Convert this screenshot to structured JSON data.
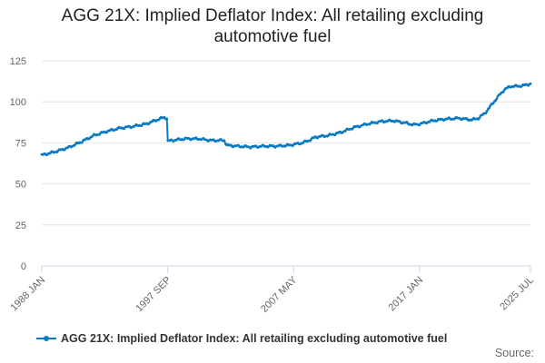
{
  "chart_data": {
    "type": "line",
    "title_line1": "AGG 21X: Implied Deflator Index: All retailing excluding",
    "title_line2": "automotive fuel",
    "xlabel": "",
    "ylabel": "",
    "ylim": [
      0,
      125
    ],
    "yticks": [
      "0",
      "25",
      "50",
      "75",
      "100",
      "125"
    ],
    "xticks": [
      {
        "label": "1988 JAN",
        "t": 1988.0
      },
      {
        "label": "1997 SEP",
        "t": 1997.67
      },
      {
        "label": "2007 MAY",
        "t": 2007.33
      },
      {
        "label": "2017 JAN",
        "t": 2017.0
      },
      {
        "label": "2025 JUL",
        "t": 2025.5
      }
    ],
    "x_range": [
      1988.0,
      2025.5
    ],
    "grid": true,
    "legend_position": "bottom",
    "color": "#0a7bc2",
    "series": [
      {
        "name": "AGG 21X: Implied Deflator Index: All retailing excluding automotive fuel",
        "points": [
          [
            1988.0,
            67.5
          ],
          [
            1989.0,
            69.5
          ],
          [
            1990.0,
            72.0
          ],
          [
            1991.0,
            75.5
          ],
          [
            1992.0,
            79.5
          ],
          [
            1993.0,
            82.0
          ],
          [
            1994.0,
            84.0
          ],
          [
            1995.0,
            85.0
          ],
          [
            1996.0,
            86.5
          ],
          [
            1996.5,
            88.0
          ],
          [
            1997.0,
            89.5
          ],
          [
            1997.4,
            90.5
          ],
          [
            1997.6,
            90.0
          ],
          [
            1997.67,
            76.0
          ],
          [
            1998.0,
            76.5
          ],
          [
            1999.0,
            77.5
          ],
          [
            2000.0,
            77.5
          ],
          [
            2001.0,
            76.5
          ],
          [
            2002.0,
            76.5
          ],
          [
            2002.2,
            73.5
          ],
          [
            2003.0,
            73.0
          ],
          [
            2004.0,
            72.5
          ],
          [
            2005.0,
            73.0
          ],
          [
            2006.0,
            73.0
          ],
          [
            2007.0,
            73.5
          ],
          [
            2007.33,
            74.0
          ],
          [
            2008.0,
            75.0
          ],
          [
            2008.5,
            76.5
          ],
          [
            2009.0,
            78.5
          ],
          [
            2010.0,
            79.5
          ],
          [
            2011.0,
            81.5
          ],
          [
            2012.0,
            84.5
          ],
          [
            2013.0,
            86.5
          ],
          [
            2014.0,
            88.0
          ],
          [
            2015.0,
            88.5
          ],
          [
            2016.0,
            87.0
          ],
          [
            2016.5,
            86.0
          ],
          [
            2017.0,
            86.5
          ],
          [
            2018.0,
            88.5
          ],
          [
            2019.0,
            89.5
          ],
          [
            2020.0,
            90.0
          ],
          [
            2021.0,
            89.0
          ],
          [
            2021.5,
            90.0
          ],
          [
            2022.0,
            93.0
          ],
          [
            2022.5,
            98.0
          ],
          [
            2023.0,
            103.0
          ],
          [
            2023.5,
            107.5
          ],
          [
            2024.0,
            109.5
          ],
          [
            2024.5,
            109.5
          ],
          [
            2025.0,
            110.0
          ],
          [
            2025.5,
            111.0
          ]
        ]
      }
    ],
    "legend_label": "AGG 21X: Implied Deflator Index: All retailing excluding automotive fuel",
    "source_label": "Source:"
  }
}
